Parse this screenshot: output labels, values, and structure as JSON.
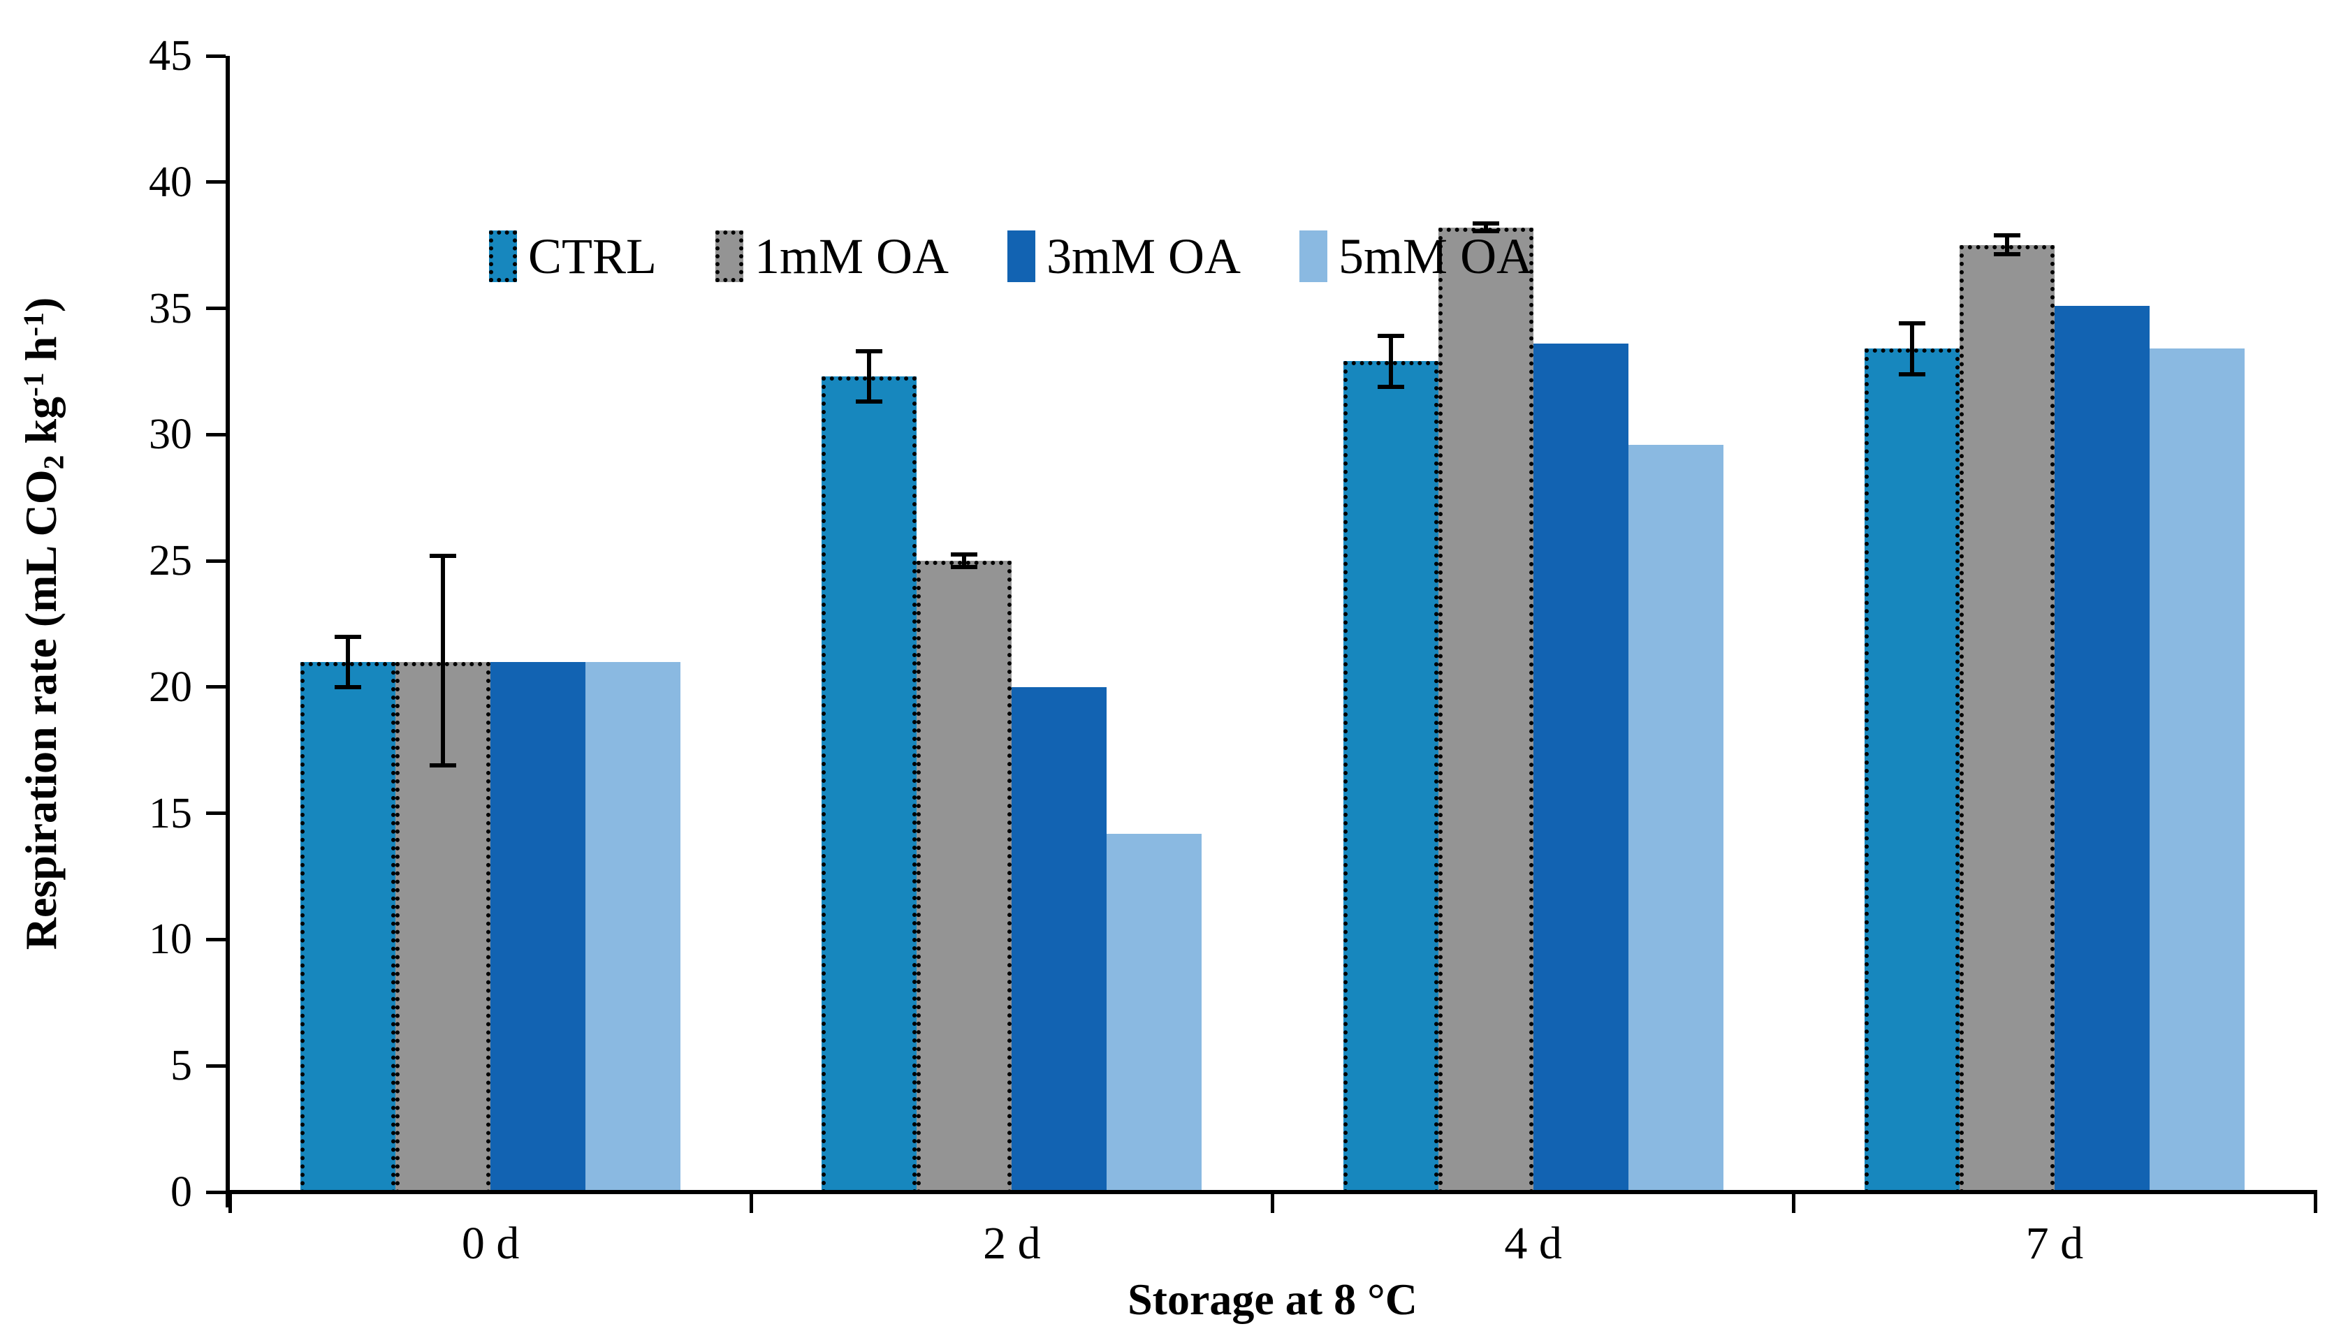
{
  "chart_data": {
    "type": "bar",
    "title": "",
    "xlabel": "Storage at 8 °C",
    "ylabel": "Respiration rate (mL CO2 kg-1 h-1)",
    "ylabel_segments": [
      {
        "text": "Respiration rate (mL CO",
        "style": "normal"
      },
      {
        "text": "2",
        "style": "sub"
      },
      {
        "text": " kg",
        "style": "normal"
      },
      {
        "text": "-1",
        "style": "sup"
      },
      {
        "text": " h",
        "style": "normal"
      },
      {
        "text": "-1",
        "style": "sup"
      },
      {
        "text": ")",
        "style": "normal"
      }
    ],
    "categories": [
      "0 d",
      "2 d",
      "4 d",
      "7 d"
    ],
    "y_axis": {
      "min": 0,
      "max": 45,
      "step": 5,
      "tick_labels": [
        "0",
        "5",
        "10",
        "15",
        "20",
        "25",
        "30",
        "35",
        "40",
        "45"
      ]
    },
    "grid": false,
    "legend_position": "top-inside",
    "series": [
      {
        "name": "CTRL",
        "color": "#1787BE",
        "border": "dotted",
        "values": [
          21.0,
          32.3,
          32.9,
          33.4
        ],
        "error_plus": [
          1.0,
          1.0,
          1.0,
          1.0
        ],
        "error_minus": [
          1.0,
          1.0,
          1.0,
          1.0
        ]
      },
      {
        "name": "1mM OA",
        "color": "#949494",
        "border": "dotted",
        "values": [
          21.0,
          25.0,
          38.2,
          37.5
        ],
        "error_plus": [
          4.2,
          0.25,
          0.15,
          0.4
        ],
        "error_minus": [
          4.1,
          0.25,
          0.15,
          0.35
        ],
        "note": ""
      },
      {
        "name": "3mM OA",
        "color": "#1263B2",
        "border": "none",
        "values": [
          21.0,
          20.0,
          33.6,
          35.1
        ],
        "error_plus": [
          0,
          0,
          0,
          0
        ],
        "error_minus": [
          0,
          0,
          0,
          0
        ]
      },
      {
        "name": "5mM OA",
        "color": "#8AB9E1",
        "border": "none",
        "values": [
          21.0,
          14.2,
          29.6,
          33.4
        ],
        "error_plus": [
          0,
          0,
          0,
          0
        ],
        "error_minus": [
          0,
          0,
          0,
          0
        ]
      }
    ]
  }
}
